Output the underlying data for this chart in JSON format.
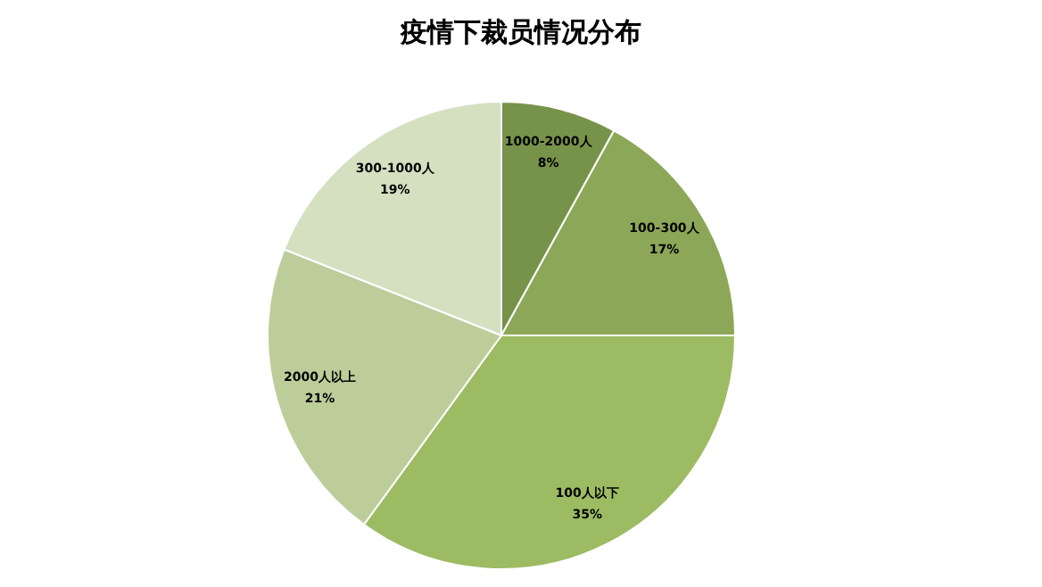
{
  "chart_data": {
    "type": "pie",
    "title": "疫情下裁员情况分布",
    "categories": [
      "1000-2000人",
      "100-300人",
      "100人以下",
      "2000人以上",
      "300-1000人"
    ],
    "values": [
      8,
      17,
      35,
      21,
      19
    ],
    "value_labels": [
      "8%",
      "17%",
      "35%",
      "21%",
      "19%"
    ],
    "colors": [
      "#77934a",
      "#8ca757",
      "#9dbb62",
      "#bccd9a",
      "#d4e0c0"
    ],
    "legend": false
  }
}
